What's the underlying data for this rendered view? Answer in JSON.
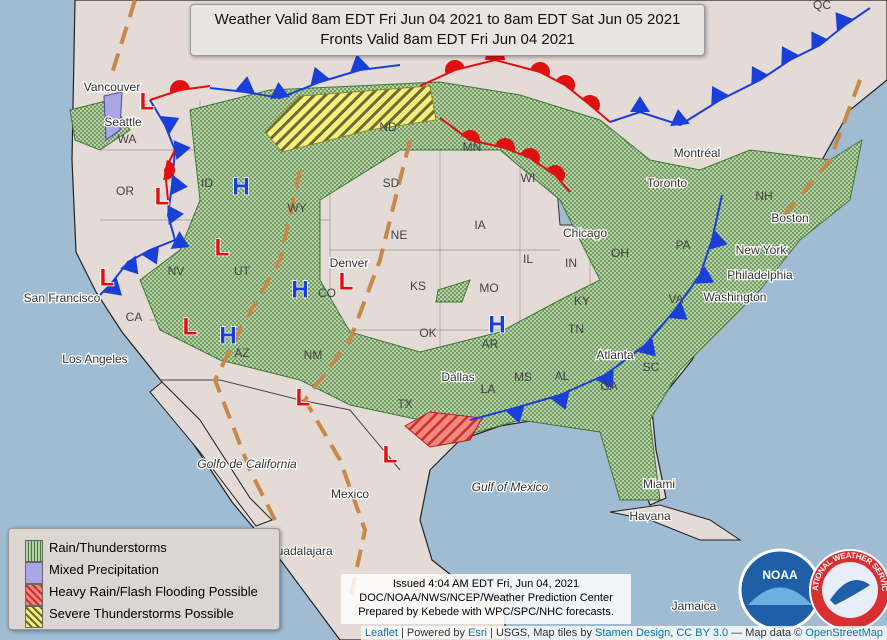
{
  "header": {
    "line1": "Weather Valid 8am EDT Fri Jun 04 2021 to 8am EDT Sat Jun 05 2021",
    "line2": "Fronts Valid 8am EDT Fri Jun 04 2021"
  },
  "legend": [
    "Rain/Thunderstorms",
    "Mixed Precipitation",
    "Heavy Rain/Flash Flooding Possible",
    "Severe Thunderstorms Possible"
  ],
  "issued": [
    "Issued 4:04 AM EDT Fri, Jun 04, 2021",
    "DOC/NOAA/NWS/NCEP/Weather Prediction Center",
    "Prepared by Kebede with WPC/SPC/NHC forecasts."
  ],
  "attribution": [
    "Leaflet",
    " | Powered by ",
    "Esri",
    " | USGS, Map tiles by ",
    "Stamen Design",
    ", ",
    "CC BY 3.0",
    " — Map data © ",
    "OpenStreetMap"
  ],
  "labels": [
    "Vancouver",
    "Seattle",
    "WA",
    "OR",
    "ID",
    "WY",
    "SD",
    "ND",
    "MN",
    "WI",
    "Chicago",
    "NE",
    "IA",
    "IL",
    "IN",
    "OH",
    "PA",
    "New York",
    "NH",
    "Boston",
    "Montréal",
    "Toronto",
    "NV",
    "UT",
    "CO",
    "Denver",
    "KS",
    "MO",
    "KY",
    "VA",
    "Washington",
    "Philadelphia",
    "TN",
    "SC",
    "GA",
    "Atlanta",
    "AL",
    "MS",
    "LA",
    "AR",
    "OK",
    "TX",
    "Dallas",
    "NM",
    "AZ",
    "CA",
    "San Francisco",
    "Los Angeles",
    "Golfo de California",
    "Mexico",
    "Gulf of Mexico",
    "Havana",
    "Miami",
    "Guadalajara",
    "Jamaica",
    "QC"
  ],
  "pressure_centers": [
    "H",
    "H",
    "H",
    "H",
    "L",
    "L",
    "L",
    "L",
    "L",
    "L",
    "L",
    "L"
  ],
  "logos": [
    "NOAA",
    "NATIONAL WEATHER SERVICE"
  ]
}
